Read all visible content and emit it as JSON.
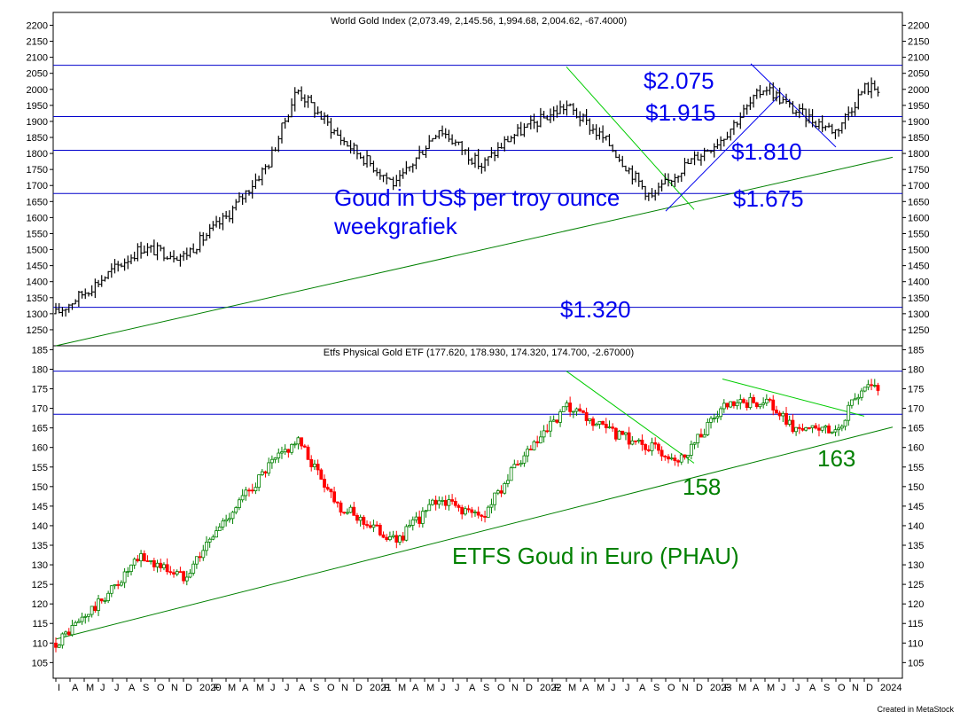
{
  "chart_data": [
    {
      "type": "candlestick",
      "title": "World Gold Index (2,073.49, 2,145.56, 1,994.68, 2,004.62, -67.4000)",
      "ylim": [
        1200,
        2240
      ],
      "yticks": [
        1250,
        1300,
        1350,
        1400,
        1450,
        1500,
        1550,
        1600,
        1650,
        1700,
        1750,
        1800,
        1850,
        1900,
        1950,
        2000,
        2050,
        2100,
        2150,
        2200
      ],
      "horizontal_levels": [
        2075,
        1915,
        1810,
        1675,
        1320
      ],
      "annotations": [
        "Goud in US$ per troy ounce",
        "weekgrafiek",
        "$2.075",
        "$1.915",
        "$1.810",
        "$1.675",
        "$1.320"
      ],
      "trendlines": [
        {
          "color": "#008000",
          "from": [
            "2019-03",
            1200
          ],
          "to": [
            "2024-02",
            1788
          ]
        },
        {
          "color": "#00cc00",
          "from": [
            "2022-03",
            2070
          ],
          "to": [
            "2022-12",
            1625
          ]
        },
        {
          "color": "#0000ee",
          "from": [
            "2022-10",
            1620
          ],
          "to": [
            "2023-06",
            1980
          ]
        },
        {
          "color": "#0000ee",
          "from": [
            "2023-04",
            2080
          ],
          "to": [
            "2023-10",
            1820
          ]
        }
      ],
      "series": [
        {
          "x": [
            "2019-03",
            "2019-06",
            "2019-09",
            "2019-12",
            "2020-03",
            "2020-06",
            "2020-08",
            "2020-11",
            "2021-03",
            "2021-06",
            "2021-09",
            "2021-11",
            "2022-03",
            "2022-06",
            "2022-09",
            "2022-11",
            "2023-02",
            "2023-05",
            "2023-07",
            "2023-10",
            "2023-12"
          ],
          "values": [
            1300,
            1400,
            1505,
            1480,
            1600,
            1770,
            2000,
            1850,
            1700,
            1880,
            1760,
            1850,
            1950,
            1830,
            1660,
            1750,
            1850,
            2010,
            1935,
            1870,
            2005
          ]
        }
      ]
    },
    {
      "type": "candlestick",
      "title": "Etfs Physical Gold ETF (177.620, 178.930, 174.320, 174.700, -2.67000)",
      "ylim": [
        101,
        186
      ],
      "yticks": [
        105,
        110,
        115,
        120,
        125,
        130,
        135,
        140,
        145,
        150,
        155,
        160,
        165,
        170,
        175,
        180,
        185
      ],
      "horizontal_levels": [
        179.5,
        168.5
      ],
      "annotations": [
        "ETFS Goud in Euro (PHAU)",
        "158",
        "163"
      ],
      "trendlines": [
        {
          "color": "#008000",
          "from": [
            "2019-03",
            111
          ],
          "to": [
            "2024-02",
            165.2
          ]
        },
        {
          "color": "#00cc00",
          "from": [
            "2022-03",
            179.5
          ],
          "to": [
            "2022-12",
            156
          ]
        },
        {
          "color": "#00cc00",
          "from": [
            "2023-02",
            177.5
          ],
          "to": [
            "2023-12",
            168
          ]
        }
      ],
      "series": [
        {
          "x": [
            "2019-03",
            "2019-06",
            "2019-09",
            "2019-12",
            "2020-03",
            "2020-06",
            "2020-08",
            "2020-11",
            "2021-03",
            "2021-06",
            "2021-09",
            "2021-11",
            "2022-03",
            "2022-06",
            "2022-09",
            "2022-11",
            "2023-02",
            "2023-05",
            "2023-07",
            "2023-10",
            "2023-12"
          ],
          "values": [
            110,
            120,
            132,
            127,
            142,
            155,
            162,
            145,
            136,
            147,
            142,
            153,
            170,
            164,
            160,
            157,
            170,
            172,
            165,
            164,
            176
          ]
        }
      ]
    }
  ],
  "x_axis": {
    "labels": [
      "I",
      "A",
      "M",
      "J",
      "J",
      "A",
      "S",
      "O",
      "N",
      "D",
      "2020",
      "F",
      "M",
      "A",
      "M",
      "J",
      "J",
      "A",
      "S",
      "O",
      "N",
      "D",
      "2021",
      "F",
      "M",
      "A",
      "M",
      "J",
      "J",
      "A",
      "S",
      "O",
      "N",
      "D",
      "2022",
      "F",
      "M",
      "A",
      "M",
      "J",
      "J",
      "A",
      "S",
      "O",
      "N",
      "D",
      "2023",
      "F",
      "M",
      "A",
      "M",
      "J",
      "J",
      "A",
      "S",
      "O",
      "N",
      "D",
      "2024"
    ]
  },
  "footer": {
    "credit": "Created in MetaStock"
  },
  "colors": {
    "up_candle": "#008000",
    "down_candle": "#ff0000",
    "bar": "#000000",
    "level_line": "#0000cc",
    "trend_green": "#008000",
    "trend_light": "#00cc00",
    "trend_blue": "#0000ee"
  }
}
